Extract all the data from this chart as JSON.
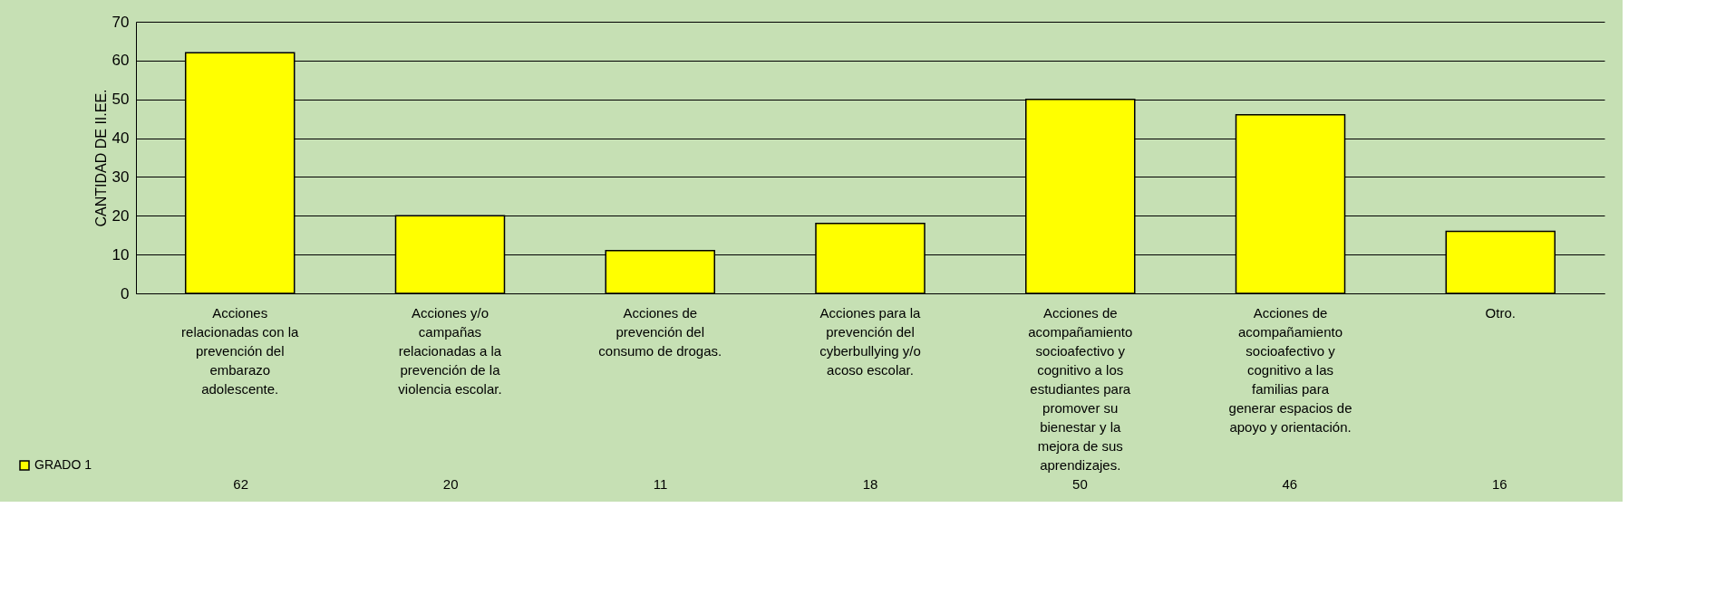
{
  "chart_data": {
    "type": "bar",
    "ylabel": "CANTIDAD DE II.EE.",
    "categories": [
      "Acciones relacionadas con la prevención del embarazo adolescente.",
      "Acciones y/o campañas relacionadas a la prevención de la violencia escolar.",
      "Acciones de prevención del consumo de drogas.",
      "Acciones para la prevención del cyberbullying y/o acoso escolar.",
      "Acciones de acompañamiento socioafectivo y cognitivo a los estudiantes para promover su bienestar y la mejora de sus aprendizajes.",
      "Acciones de acompañamiento socioafectivo y cognitivo a las familias para generar espacios de apoyo y orientación.",
      "Otro."
    ],
    "series": [
      {
        "name": "GRADO 1",
        "color": "#ffff00",
        "values": [
          62,
          20,
          11,
          18,
          50,
          46,
          16
        ]
      }
    ],
    "ylim": [
      0,
      70
    ],
    "yticks": [
      0,
      10,
      20,
      30,
      40,
      50,
      60,
      70
    ],
    "grid": "y",
    "legend": "bottom left",
    "data_labels": true
  }
}
